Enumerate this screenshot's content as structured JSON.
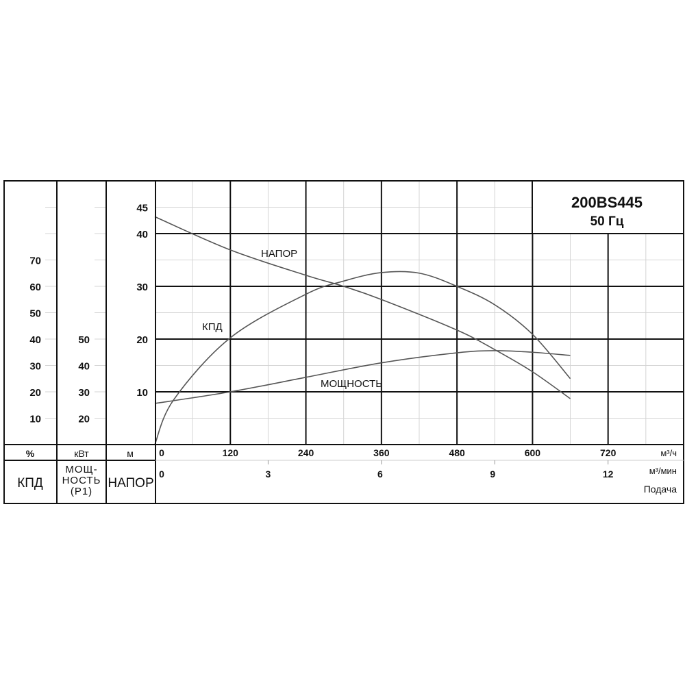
{
  "chart_data": {
    "type": "line",
    "title": "200BS445",
    "subtitle": "50 Гц",
    "x": {
      "label": "Подача",
      "unit_primary": "м³/ч",
      "unit_secondary": "м³/мин",
      "range": [
        0,
        840
      ],
      "ticks_primary": [
        0,
        120,
        240,
        360,
        480,
        600,
        720
      ],
      "ticks_secondary": [
        0,
        3,
        6,
        9,
        12
      ]
    },
    "axes": [
      {
        "key": "head",
        "label": "НАПОР",
        "unit": "м",
        "ticks": [
          10,
          20,
          30,
          40,
          45
        ],
        "range": [
          0,
          50
        ]
      },
      {
        "key": "power",
        "label_lines": [
          "МОЩ-",
          "НОСТЬ",
          "(P1)"
        ],
        "unit": "кВт",
        "ticks": [
          20,
          30,
          40,
          50
        ],
        "range": [
          10,
          110
        ]
      },
      {
        "key": "eff",
        "label": "КПД",
        "unit": "%",
        "ticks": [
          10,
          20,
          30,
          40,
          50,
          60,
          70
        ],
        "range": [
          0,
          100
        ]
      }
    ],
    "grid": true,
    "series": [
      {
        "name": "НАПОР",
        "axis": "head",
        "x": [
          0,
          120,
          240,
          300,
          360,
          480,
          540,
          600,
          660
        ],
        "y": [
          43.2,
          36.9,
          32.1,
          30.0,
          27.5,
          21.7,
          18.0,
          13.8,
          8.7
        ]
      },
      {
        "name": "КПД",
        "axis": "eff",
        "x": [
          0,
          30,
          120,
          240,
          300,
          360,
          420,
          480,
          540,
          600,
          660
        ],
        "y": [
          0,
          17,
          40.5,
          57,
          62,
          65.2,
          65,
          60,
          53,
          41.8,
          25
        ]
      },
      {
        "name": "МОЩНОСТЬ",
        "axis": "power",
        "x": [
          0,
          120,
          240,
          360,
          480,
          540,
          600,
          660
        ],
        "y": [
          25.6,
          30,
          35.5,
          41,
          44.8,
          45.6,
          45,
          43.8
        ]
      }
    ]
  }
}
